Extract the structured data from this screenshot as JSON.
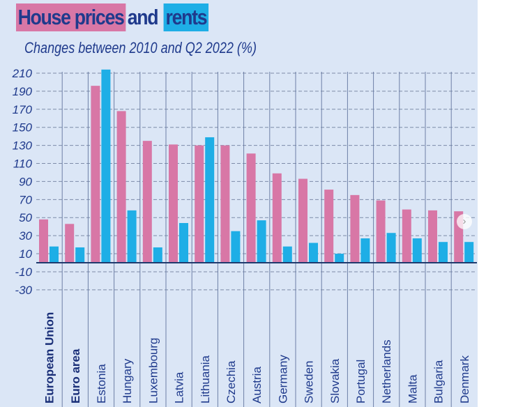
{
  "title": {
    "part1": "House prices",
    "part2": "and",
    "part3": "rents"
  },
  "subtitle": "Changes between 2010 and Q2 2022 (%)",
  "colors": {
    "house_prices": "#d877a6",
    "rents": "#1eaee6",
    "text": "#1f3a8c",
    "background": "#dbe6f6"
  },
  "next_button_icon": "chevron-right-icon",
  "chart_data": {
    "type": "bar",
    "title": "House prices and rents",
    "subtitle": "Changes between 2010 and Q2 2022 (%)",
    "categories": [
      "European Union",
      "Euro area",
      "Estonia",
      "Hungary",
      "Luxembourg",
      "Latvia",
      "Lithuania",
      "Czechia",
      "Austria",
      "Germany",
      "Sweden",
      "Slovakia",
      "Portugal",
      "Netherlands",
      "Malta",
      "Bulgaria",
      "Denmark"
    ],
    "bold_categories": [
      "European Union",
      "Euro area"
    ],
    "series": [
      {
        "name": "House prices",
        "color": "#d877a6",
        "values": [
          48,
          43,
          196,
          168,
          135,
          131,
          130,
          130,
          121,
          99,
          93,
          81,
          75,
          69,
          59,
          58,
          57
        ]
      },
      {
        "name": "rents",
        "color": "#1eaee6",
        "values": [
          18,
          17,
          214,
          58,
          17,
          44,
          139,
          35,
          47,
          18,
          22,
          10,
          27,
          33,
          27,
          23,
          23
        ]
      }
    ],
    "yticks": [
      210,
      190,
      170,
      150,
      130,
      110,
      90,
      70,
      50,
      30,
      10,
      -10,
      -30
    ],
    "ylim": [
      -30,
      214
    ],
    "grid": true,
    "xlabel": "",
    "ylabel": ""
  }
}
